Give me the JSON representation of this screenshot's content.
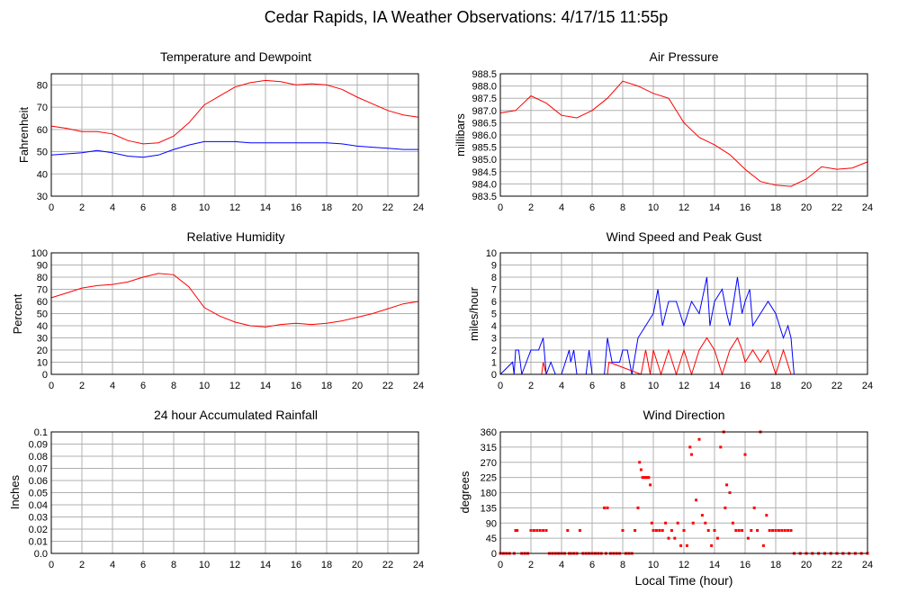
{
  "page": {
    "title": "Cedar Rapids, IA Weather Observations: 4/17/15 11:55p",
    "xlabel": "Local Time (hour)"
  },
  "colors": {
    "red": "#ff0000",
    "blue": "#0000ff",
    "grid": "#b0b0b0"
  },
  "chart_data": [
    {
      "id": "temp",
      "type": "line",
      "title": "Temperature and Dewpoint",
      "ylabel": "Fahrenheit",
      "xlim": [
        0,
        24
      ],
      "ylim": [
        30,
        85
      ],
      "xticks": [
        0,
        2,
        4,
        6,
        8,
        10,
        12,
        14,
        16,
        18,
        20,
        22,
        24
      ],
      "yticks": [
        30,
        40,
        50,
        60,
        70,
        80
      ],
      "yticklabels": [
        "30",
        "40",
        "50",
        "60",
        "70",
        "80"
      ],
      "series": [
        {
          "color": "#ff0000",
          "x": [
            0,
            1,
            2,
            3,
            4,
            5,
            6,
            7,
            8,
            9,
            10,
            11,
            12,
            13,
            14,
            15,
            16,
            17,
            18,
            19,
            20,
            21,
            22,
            23,
            24
          ],
          "y": [
            61.5,
            60.5,
            59,
            59,
            58,
            55,
            53.5,
            54,
            57,
            63,
            71,
            75,
            79,
            81,
            82,
            81.5,
            80,
            80.5,
            80,
            78,
            74.5,
            71.5,
            68.5,
            66.5,
            65.5
          ]
        },
        {
          "color": "#0000ff",
          "x": [
            0,
            1,
            2,
            3,
            4,
            5,
            6,
            7,
            8,
            9,
            10,
            11,
            12,
            13,
            14,
            15,
            16,
            17,
            18,
            19,
            20,
            21,
            22,
            23,
            24
          ],
          "y": [
            48.5,
            49,
            49.5,
            50.5,
            49.5,
            48,
            47.5,
            48.5,
            51,
            53,
            54.5,
            54.5,
            54.5,
            54,
            54,
            54,
            54,
            54,
            54,
            53.5,
            52.5,
            52,
            51.5,
            51,
            51
          ]
        }
      ]
    },
    {
      "id": "press",
      "type": "line",
      "title": "Air Pressure",
      "ylabel": "millibars",
      "xlim": [
        0,
        24
      ],
      "ylim": [
        983.5,
        988.5
      ],
      "xticks": [
        0,
        2,
        4,
        6,
        8,
        10,
        12,
        14,
        16,
        18,
        20,
        22,
        24
      ],
      "yticks": [
        983.5,
        984.0,
        984.5,
        985.0,
        985.5,
        986.0,
        986.5,
        987.0,
        987.5,
        988.0,
        988.5
      ],
      "yticklabels": [
        "983.5",
        "984.0",
        "984.5",
        "985.0",
        "985.5",
        "986.0",
        "986.5",
        "987.0",
        "987.5",
        "988.0",
        "988.5"
      ],
      "series": [
        {
          "color": "#ff0000",
          "x": [
            0,
            1,
            2,
            3,
            4,
            5,
            6,
            7,
            8,
            9,
            10,
            11,
            12,
            13,
            14,
            15,
            16,
            17,
            18,
            19,
            20,
            21,
            22,
            23,
            24
          ],
          "y": [
            986.9,
            987.0,
            987.6,
            987.3,
            986.8,
            986.7,
            987.0,
            987.5,
            988.2,
            988.0,
            987.7,
            987.5,
            986.5,
            985.9,
            985.6,
            985.2,
            984.6,
            984.1,
            983.95,
            983.9,
            984.2,
            984.7,
            984.6,
            984.65,
            984.9
          ]
        }
      ]
    },
    {
      "id": "rh",
      "type": "line",
      "title": "Relative Humidity",
      "ylabel": "Percent",
      "xlim": [
        0,
        24
      ],
      "ylim": [
        0,
        100
      ],
      "xticks": [
        0,
        2,
        4,
        6,
        8,
        10,
        12,
        14,
        16,
        18,
        20,
        22,
        24
      ],
      "yticks": [
        0,
        10,
        20,
        30,
        40,
        50,
        60,
        70,
        80,
        90,
        100
      ],
      "yticklabels": [
        "0",
        "10",
        "20",
        "30",
        "40",
        "50",
        "60",
        "70",
        "80",
        "90",
        "100"
      ],
      "series": [
        {
          "color": "#ff0000",
          "x": [
            0,
            1,
            2,
            3,
            4,
            5,
            6,
            7,
            8,
            9,
            10,
            11,
            12,
            13,
            14,
            15,
            16,
            17,
            18,
            19,
            20,
            21,
            22,
            23,
            24
          ],
          "y": [
            63,
            67,
            71,
            73,
            74,
            76,
            80,
            83,
            82,
            72,
            55,
            48,
            43,
            40,
            39,
            41,
            42,
            41,
            42,
            44,
            47,
            50,
            54,
            58,
            60
          ]
        }
      ]
    },
    {
      "id": "wind",
      "type": "line",
      "title": "Wind Speed and Peak Gust",
      "ylabel": "miles/hour",
      "xlim": [
        0,
        24
      ],
      "ylim": [
        0,
        10
      ],
      "xticks": [
        0,
        2,
        4,
        6,
        8,
        10,
        12,
        14,
        16,
        18,
        20,
        22,
        24
      ],
      "yticks": [
        0,
        1,
        2,
        3,
        4,
        5,
        6,
        7,
        8,
        9,
        10
      ],
      "yticklabels": [
        "0",
        "1",
        "2",
        "3",
        "4",
        "5",
        "6",
        "7",
        "8",
        "9",
        "10"
      ],
      "series": [
        {
          "color": "#0000ff",
          "x": [
            0,
            0.8,
            0.9,
            1.0,
            1.2,
            1.4,
            2.0,
            2.2,
            2.5,
            2.8,
            3.0,
            3.3,
            3.6,
            4.0,
            4.5,
            4.6,
            4.8,
            5.0,
            5.6,
            5.8,
            6.0,
            6.8,
            7.0,
            7.3,
            7.8,
            8.0,
            8.3,
            8.6,
            9.0,
            9.5,
            10.0,
            10.3,
            10.6,
            11.0,
            11.5,
            12.0,
            12.5,
            13.0,
            13.5,
            13.7,
            14.0,
            14.5,
            14.8,
            15.0,
            15.5,
            15.8,
            16.0,
            16.3,
            16.5,
            17.0,
            17.5,
            18.0,
            18.5,
            18.8,
            19.0,
            19.2,
            24
          ],
          "y": [
            0,
            1,
            0,
            2,
            2,
            0,
            2,
            2,
            2,
            3,
            0,
            1,
            0,
            0,
            2,
            1,
            2,
            0,
            0,
            2,
            0,
            0,
            3,
            1,
            1,
            2,
            2,
            0,
            3,
            4,
            5,
            7,
            4,
            6,
            6,
            4,
            6,
            5,
            8,
            4,
            6,
            7,
            5,
            4,
            8,
            5,
            6,
            7,
            4,
            5,
            6,
            5,
            3,
            4,
            3,
            0,
            0
          ]
        },
        {
          "color": "#ff0000",
          "x": [
            0,
            2.7,
            2.8,
            3.0,
            7.0,
            7.1,
            9.2,
            9.5,
            9.8,
            10.0,
            10.5,
            11.0,
            11.5,
            12.0,
            12.5,
            13.0,
            13.5,
            14.0,
            14.5,
            15.0,
            15.5,
            15.8,
            16.0,
            16.5,
            17.0,
            17.5,
            18.0,
            18.5,
            19.0,
            24
          ],
          "y": [
            0,
            0,
            1,
            0,
            0,
            1,
            0,
            2,
            0,
            2,
            0,
            2,
            0,
            2,
            0,
            2,
            3,
            2,
            0,
            2,
            3,
            2,
            1,
            2,
            1,
            2,
            0,
            2,
            0,
            0
          ]
        }
      ]
    },
    {
      "id": "rain",
      "type": "line",
      "title": "24 hour Accumulated Rainfall",
      "ylabel": "Inches",
      "xlim": [
        0,
        24
      ],
      "ylim": [
        0,
        0.1
      ],
      "xticks": [
        0,
        2,
        4,
        6,
        8,
        10,
        12,
        14,
        16,
        18,
        20,
        22,
        24
      ],
      "yticks": [
        0,
        0.01,
        0.02,
        0.03,
        0.04,
        0.05,
        0.06,
        0.07,
        0.08,
        0.09,
        0.1
      ],
      "yticklabels": [
        "0.0",
        "0.01",
        "0.02",
        "0.03",
        "0.04",
        "0.05",
        "0.06",
        "0.07",
        "0.08",
        "0.09",
        "0.1"
      ],
      "series": [
        {
          "color": "#ff0000",
          "x": [
            0,
            24
          ],
          "y": [
            0,
            0
          ]
        }
      ]
    },
    {
      "id": "dir",
      "type": "scatter",
      "title": "Wind Direction",
      "ylabel": "degrees",
      "xlim": [
        0,
        24
      ],
      "ylim": [
        0,
        360
      ],
      "xticks": [
        0,
        2,
        4,
        6,
        8,
        10,
        12,
        14,
        16,
        18,
        20,
        22,
        24
      ],
      "yticks": [
        0,
        45,
        90,
        135,
        180,
        225,
        270,
        315,
        360
      ],
      "yticklabels": [
        "0",
        "45",
        "90",
        "135",
        "180",
        "225",
        "270",
        "315",
        "360"
      ],
      "series": [
        {
          "color": "#ff0000",
          "x": [
            0,
            0.2,
            0.4,
            0.6,
            0.9,
            1.0,
            1.1,
            1.4,
            1.6,
            1.8,
            2.0,
            2.2,
            2.4,
            2.6,
            2.8,
            3.0,
            3.2,
            3.4,
            3.6,
            3.8,
            4.0,
            4.2,
            4.4,
            4.5,
            4.6,
            4.8,
            5.0,
            5.2,
            5.4,
            5.6,
            5.8,
            6.0,
            6.2,
            6.4,
            6.6,
            6.8,
            6.9,
            7.0,
            7.2,
            7.4,
            7.6,
            7.8,
            8.0,
            8.2,
            8.4,
            8.6,
            8.8,
            9.0,
            9.1,
            9.2,
            9.3,
            9.4,
            9.5,
            9.6,
            9.7,
            9.8,
            9.9,
            10.0,
            10.2,
            10.4,
            10.6,
            10.8,
            11.0,
            11.2,
            11.4,
            11.6,
            11.8,
            12.0,
            12.2,
            12.4,
            12.5,
            12.6,
            12.8,
            13.0,
            13.2,
            13.4,
            13.6,
            13.8,
            14.0,
            14.2,
            14.4,
            14.6,
            14.7,
            14.8,
            15.0,
            15.2,
            15.4,
            15.6,
            15.8,
            16.0,
            16.2,
            16.4,
            16.6,
            16.8,
            17.0,
            17.2,
            17.4,
            17.6,
            17.8,
            18.0,
            18.2,
            18.4,
            18.6,
            18.8,
            19.0,
            19.2,
            19.6,
            20,
            20.4,
            20.8,
            21.2,
            21.6,
            22,
            22.4,
            22.8,
            23.2,
            23.6,
            24
          ],
          "y": [
            0,
            0,
            0,
            0,
            0,
            68,
            68,
            0,
            0,
            0,
            68,
            68,
            68,
            68,
            68,
            68,
            0,
            0,
            0,
            0,
            0,
            0,
            68,
            0,
            0,
            0,
            0,
            68,
            0,
            0,
            0,
            0,
            0,
            0,
            0,
            135,
            0,
            135,
            0,
            0,
            0,
            0,
            68,
            0,
            0,
            0,
            68,
            135,
            270,
            248,
            225,
            225,
            225,
            225,
            225,
            203,
            90,
            68,
            68,
            68,
            68,
            90,
            45,
            68,
            45,
            90,
            23,
            68,
            23,
            315,
            293,
            90,
            158,
            338,
            113,
            90,
            68,
            23,
            68,
            45,
            315,
            360,
            135,
            203,
            180,
            90,
            68,
            68,
            68,
            293,
            45,
            68,
            135,
            68,
            360,
            23,
            113,
            68,
            68,
            68,
            68,
            68,
            68,
            68,
            68,
            0,
            0,
            0,
            0,
            0,
            0,
            0,
            0,
            0,
            0,
            0,
            0,
            0
          ]
        }
      ]
    }
  ]
}
